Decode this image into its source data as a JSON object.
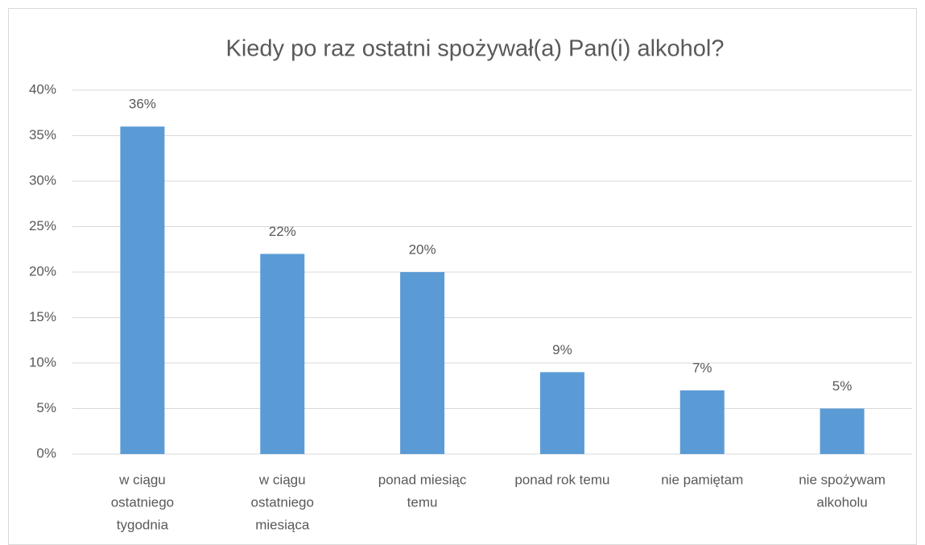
{
  "chart_data": {
    "type": "bar",
    "title": "Kiedy po raz ostatni spożywał(a) Pan(i) alkohol?",
    "categories": [
      [
        "w ciągu",
        "ostatniego",
        "tygodnia"
      ],
      [
        "w ciągu",
        "ostatniego",
        "miesiąca"
      ],
      [
        "ponad miesiąc",
        "temu"
      ],
      [
        "ponad rok temu"
      ],
      [
        "nie pamiętam"
      ],
      [
        "nie spożywam",
        "alkoholu"
      ]
    ],
    "values": [
      36,
      22,
      20,
      9,
      7,
      5
    ],
    "value_labels": [
      "36%",
      "22%",
      "20%",
      "9%",
      "7%",
      "5%"
    ],
    "color": "#5b9bd5",
    "ylim": [
      0,
      40
    ],
    "yticks": [
      {
        "value": 0,
        "label": "0%"
      },
      {
        "value": 5,
        "label": "5%"
      },
      {
        "value": 10,
        "label": "10%"
      },
      {
        "value": 15,
        "label": "15%"
      },
      {
        "value": 20,
        "label": "20%"
      },
      {
        "value": 25,
        "label": "25%"
      },
      {
        "value": 30,
        "label": "30%"
      },
      {
        "value": 35,
        "label": "35%"
      },
      {
        "value": 40,
        "label": "40%"
      }
    ],
    "grid": true
  }
}
